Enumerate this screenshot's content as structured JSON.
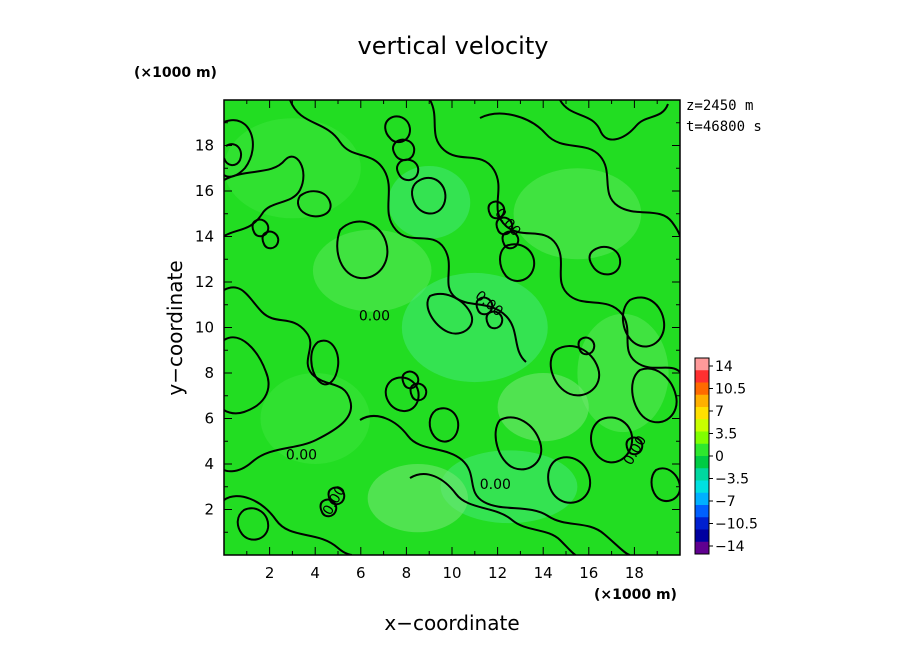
{
  "chart_data": {
    "type": "heatmap",
    "subtype": "filled-contour",
    "title": "vertical velocity",
    "xlabel": "x−coordinate",
    "ylabel": "y−coordinate",
    "x_unit": "(×1000 m)",
    "y_unit": "(×1000 m)",
    "xlim": [
      0,
      20
    ],
    "ylim": [
      0,
      20
    ],
    "x_ticks": [
      "2",
      "4",
      "6",
      "8",
      "10",
      "12",
      "14",
      "16",
      "18"
    ],
    "y_ticks": [
      "2",
      "4",
      "6",
      "8",
      "10",
      "12",
      "14",
      "16",
      "18"
    ],
    "info_lines": [
      "z=2450  m",
      "t=46800  s"
    ],
    "field_fill_colors": [
      "#22dd22",
      "#3ce43c",
      "#5ae85a",
      "#76e876",
      "#44e878"
    ],
    "contour_level": 0.0,
    "contour_labels": [
      "0.00",
      "0.00",
      "0.00",
      "0.00",
      "0.00",
      "0.00",
      "0.00"
    ],
    "colorbar": {
      "labels": [
        "14",
        "10.5",
        "7",
        "3.5",
        "0",
        "−3.5",
        "−7",
        "−10.5",
        "−14"
      ],
      "colors_top_to_bottom": [
        "#ff9a9a",
        "#ff3030",
        "#ff6a00",
        "#ffb000",
        "#ffe000",
        "#c8ff00",
        "#80ff00",
        "#2ee82e",
        "#00cc44",
        "#00d8a0",
        "#00e0e0",
        "#00b0ff",
        "#0060ff",
        "#0020d0",
        "#0000a0",
        "#600090"
      ]
    },
    "legend_placement": "right",
    "grid": false
  }
}
